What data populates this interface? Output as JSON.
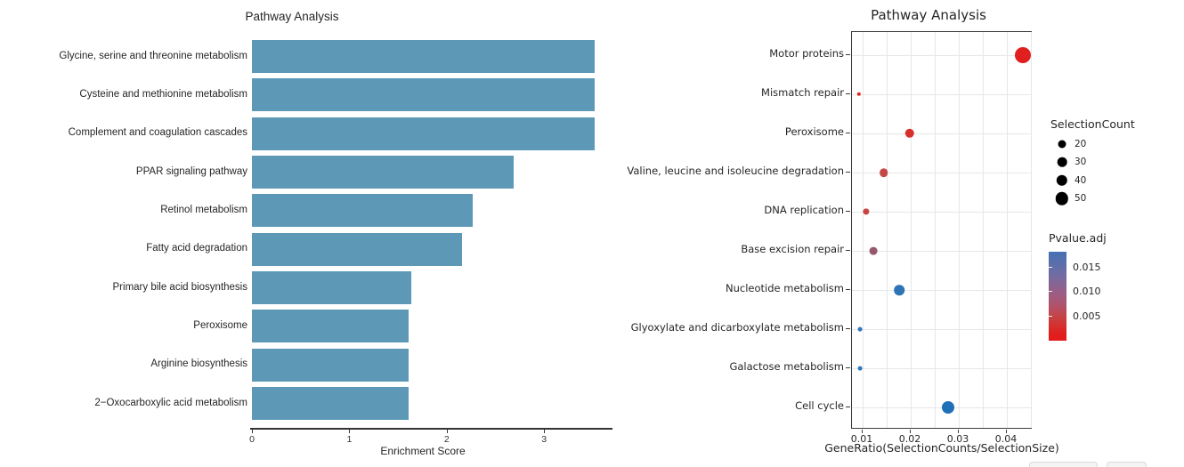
{
  "chart_data": [
    {
      "id": "enrichment_bar_chart",
      "type": "bar",
      "orientation": "horizontal",
      "title": "Pathway Analysis",
      "xlabel": "Enrichment Score",
      "x_ticks": [
        0,
        1,
        2,
        3
      ],
      "xlim": [
        0,
        3.7
      ],
      "grid": false,
      "bar_color": "#5d99b7",
      "categories": [
        "Glycine, serine and threonine metabolism",
        "Cysteine and methionine metabolism",
        "Complement and coagulation cascades",
        "PPAR signaling pathway",
        "Retinol metabolism",
        "Fatty acid degradation",
        "Primary bile acid biosynthesis",
        "Peroxisome",
        "Arginine biosynthesis",
        "2−Oxocarboxylic acid metabolism"
      ],
      "values": [
        3.52,
        3.52,
        3.52,
        2.69,
        2.27,
        2.16,
        1.64,
        1.61,
        1.61,
        1.61
      ]
    },
    {
      "id": "generatio_dot_plot",
      "type": "scatter",
      "title": "Pathway Analysis",
      "xlabel": "GeneRatio(SelectionCounts/SelectionSize)",
      "x_ticks": [
        0.01,
        0.02,
        0.03,
        0.04
      ],
      "xlim": [
        0.0078,
        0.0452
      ],
      "grid": true,
      "points": [
        {
          "label": "Motor proteins",
          "gene_ratio": 0.0433,
          "selection_count": 55,
          "pvalue_adj": 0.001,
          "color": "#e01f1f",
          "radius": 9
        },
        {
          "label": "Mismatch repair",
          "gene_ratio": 0.0092,
          "selection_count": 8,
          "pvalue_adj": 0.002,
          "color": "#df2722",
          "radius": 2.2
        },
        {
          "label": "Peroxisome",
          "gene_ratio": 0.0198,
          "selection_count": 28,
          "pvalue_adj": 0.002,
          "color": "#d62f2c",
          "radius": 5.2
        },
        {
          "label": "Valine, leucine and isoleucine degradation",
          "gene_ratio": 0.0144,
          "selection_count": 25,
          "pvalue_adj": 0.004,
          "color": "#c44745",
          "radius": 4.8
        },
        {
          "label": "DNA replication",
          "gene_ratio": 0.0107,
          "selection_count": 15,
          "pvalue_adj": 0.004,
          "color": "#c84343",
          "radius": 3.6
        },
        {
          "label": "Base excision repair",
          "gene_ratio": 0.0122,
          "selection_count": 20,
          "pvalue_adj": 0.008,
          "color": "#96586f",
          "radius": 4.4
        },
        {
          "label": "Nucleotide metabolism",
          "gene_ratio": 0.0176,
          "selection_count": 35,
          "pvalue_adj": 0.015,
          "color": "#2e74b5",
          "radius": 5.8
        },
        {
          "label": "Glyoxylate and dicarboxylate metabolism",
          "gene_ratio": 0.0094,
          "selection_count": 10,
          "pvalue_adj": 0.014,
          "color": "#2e79be",
          "radius": 2.4
        },
        {
          "label": "Galactose metabolism",
          "gene_ratio": 0.0094,
          "selection_count": 10,
          "pvalue_adj": 0.014,
          "color": "#2e79be",
          "radius": 2.4
        },
        {
          "label": "Cell cycle",
          "gene_ratio": 0.0277,
          "selection_count": 45,
          "pvalue_adj": 0.016,
          "color": "#1f70b8",
          "radius": 7
        }
      ],
      "size_legend": {
        "title": "SelectionCount",
        "dot_color": "#000000",
        "entries": [
          {
            "value": "20",
            "radius": 4.5
          },
          {
            "value": "30",
            "radius": 5.3
          },
          {
            "value": "40",
            "radius": 6.2
          },
          {
            "value": "50",
            "radius": 7.2
          }
        ]
      },
      "color_legend": {
        "title": "Pvalue.adj",
        "ticks": [
          "0.015",
          "0.010",
          "0.005"
        ],
        "top_color": "#4471b3",
        "bottom_color": "#e51a1a"
      }
    }
  ]
}
